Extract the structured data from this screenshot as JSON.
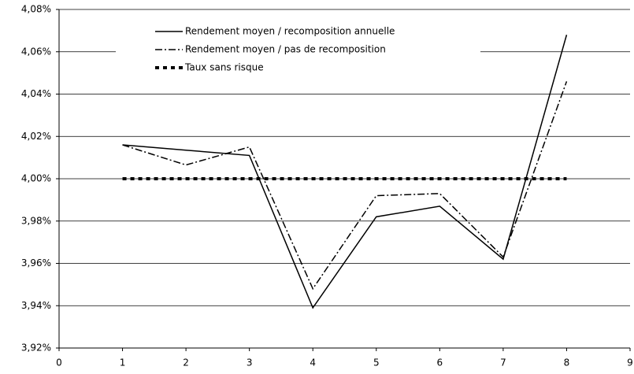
{
  "chart_data": {
    "type": "line",
    "x": [
      1,
      2,
      3,
      4,
      5,
      6,
      7,
      8
    ],
    "series": [
      {
        "name": "Rendement moyen / recomposition annuelle",
        "color": "#000000",
        "style": "solid",
        "values": [
          4.016,
          4.0135,
          4.011,
          3.939,
          3.982,
          3.987,
          3.962,
          4.068
        ]
      },
      {
        "name": "Rendement moyen / pas de recomposition",
        "color": "#000000",
        "style": "dashdot",
        "values": [
          4.016,
          4.0065,
          4.015,
          3.948,
          3.992,
          3.993,
          3.963,
          4.046
        ]
      },
      {
        "name": "Taux sans risque",
        "color": "#000000",
        "style": "dotted",
        "values": [
          4.0,
          4.0,
          4.0,
          4.0,
          4.0,
          4.0,
          4.0,
          4.0
        ]
      }
    ],
    "xlim": [
      0,
      9
    ],
    "xticks": [
      0,
      1,
      2,
      3,
      4,
      5,
      6,
      7,
      8,
      9
    ],
    "ylim": [
      3.92,
      4.08
    ],
    "yticks": [
      {
        "value": 3.92,
        "label": "3,92%"
      },
      {
        "value": 3.94,
        "label": "3,94%"
      },
      {
        "value": 3.96,
        "label": "3,96%"
      },
      {
        "value": 3.98,
        "label": "3,98%"
      },
      {
        "value": 4.0,
        "label": "4,00%"
      },
      {
        "value": 4.02,
        "label": "4,02%"
      },
      {
        "value": 4.04,
        "label": "4,04%"
      },
      {
        "value": 4.06,
        "label": "4,06%"
      },
      {
        "value": 4.08,
        "label": "4,08%"
      }
    ],
    "grid": true,
    "legend": "top"
  }
}
